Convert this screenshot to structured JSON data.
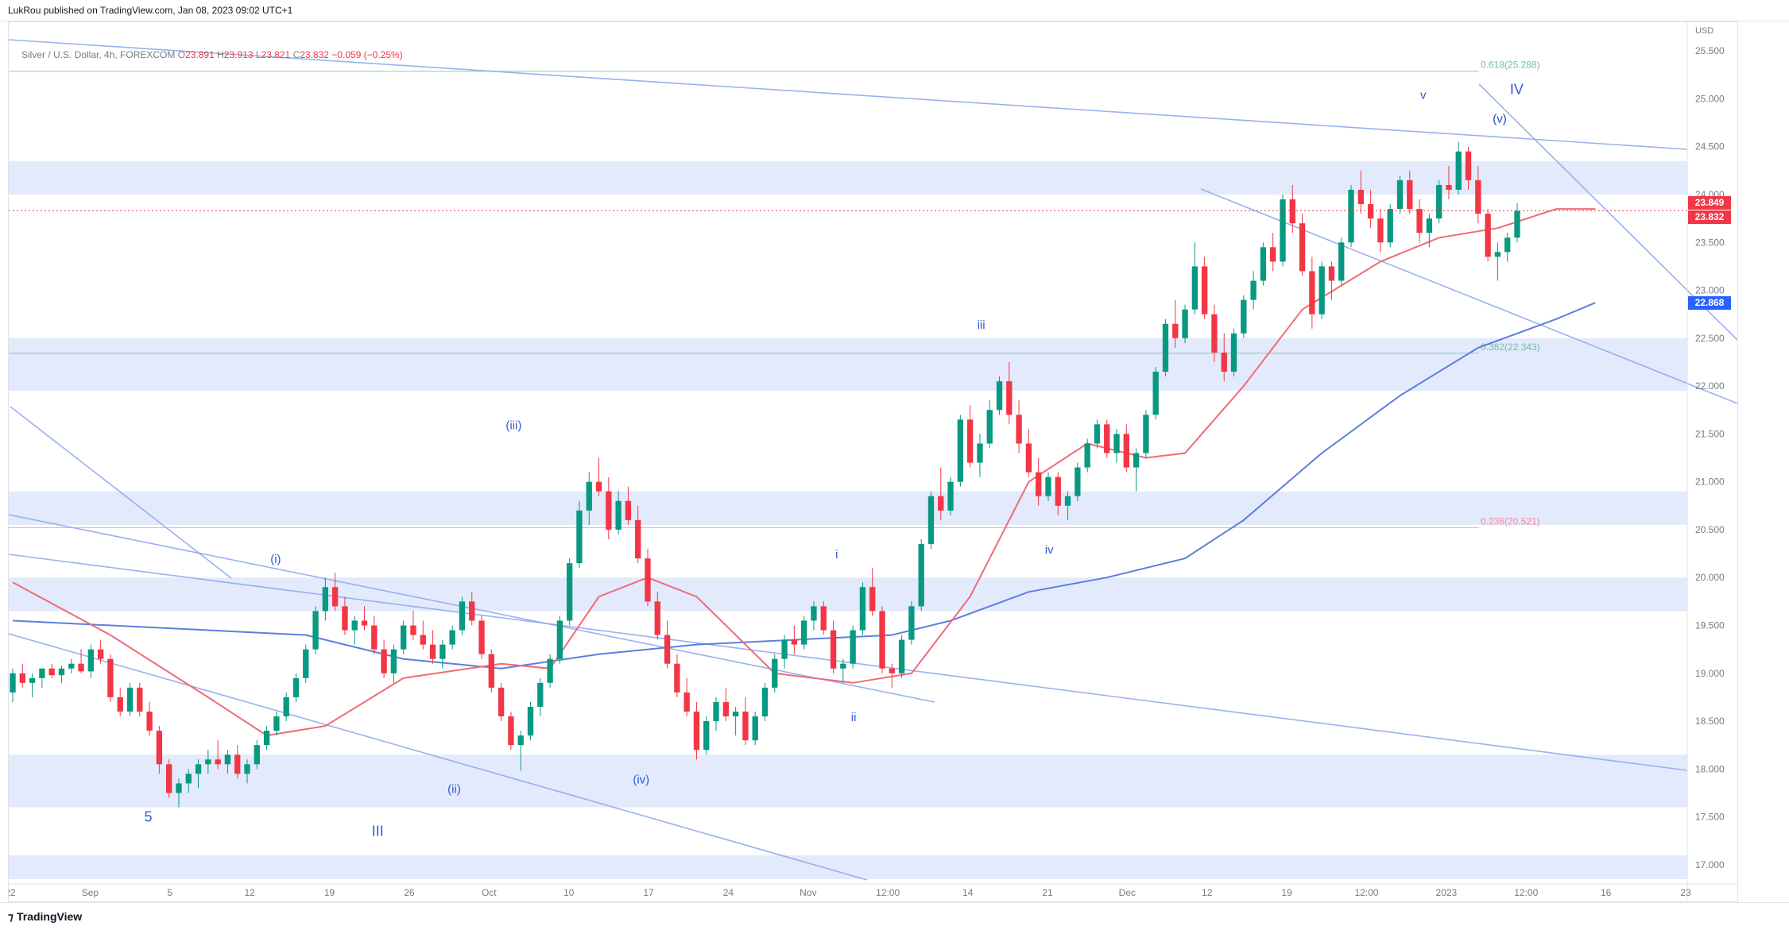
{
  "publisher": "LukRou published on TradingView.com, Jan 08, 2023 09:02 UTC+1",
  "legend": {
    "symbol": "Silver / U.S. Dollar, 4h, FOREXCOM",
    "o_label": "O",
    "o": "23.891",
    "h_label": "H",
    "h": "23.913",
    "l_label": "L",
    "l": "23.821",
    "c_label": "C",
    "c": "23.832",
    "change": "−0.059 (−0.25%)"
  },
  "footer": {
    "logo": "TradingView"
  },
  "colors": {
    "bull": "#089981",
    "bear": "#f23645",
    "ma_fast": "#f06a76",
    "ma_slow": "#5b7fde",
    "zone": "#dde6fb",
    "trendline": "#90a9ee",
    "wave_label": "#2f5bd0",
    "fib_green": "#6fc0a3",
    "fib_red": "#f28b9a"
  },
  "price_tags": [
    {
      "value": "23.849",
      "color": "#f23645"
    },
    {
      "value": "23.832",
      "color": "#f23645"
    },
    {
      "value": "22.868",
      "color": "#2962ff"
    }
  ],
  "chart_data": {
    "type": "candlestick",
    "currency": "USD",
    "ylim": [
      16.8,
      25.8
    ],
    "y_ticks": [
      "25.500",
      "25.000",
      "24.500",
      "24.000",
      "23.500",
      "23.000",
      "22.500",
      "22.000",
      "21.500",
      "21.000",
      "20.500",
      "20.000",
      "19.500",
      "19.000",
      "18.500",
      "18.000",
      "17.500",
      "17.000"
    ],
    "x_ticks": [
      "22",
      "Sep",
      "5",
      "12",
      "19",
      "26",
      "Oct",
      "10",
      "17",
      "24",
      "Nov",
      "12:00",
      "14",
      "21",
      "Dec",
      "12",
      "19",
      "12:00",
      "2023",
      "12:00",
      "16",
      "23"
    ],
    "fib_levels": [
      {
        "label": "0.618(25.288)",
        "value": 25.288
      },
      {
        "label": "0.382(22.343)",
        "value": 22.343
      },
      {
        "label": "0.236(20.521)",
        "value": 20.521
      }
    ],
    "zones": [
      [
        24.0,
        24.35
      ],
      [
        21.95,
        22.5
      ],
      [
        20.55,
        20.9
      ],
      [
        19.65,
        20.0
      ],
      [
        17.6,
        18.15
      ],
      [
        16.85,
        17.1
      ]
    ],
    "wave_labels": [
      "5",
      "(i)",
      "(v)",
      "III",
      "(ii)",
      "(iii)",
      "(iv)",
      "i",
      "ii",
      "iii",
      "iv",
      "v",
      "(v)",
      "IV"
    ],
    "candles": [
      [
        18.8,
        19.05,
        18.7,
        19.0
      ],
      [
        19.0,
        19.1,
        18.85,
        18.9
      ],
      [
        18.9,
        19.0,
        18.75,
        18.95
      ],
      [
        18.95,
        19.05,
        18.85,
        19.05
      ],
      [
        19.05,
        19.1,
        18.95,
        18.98
      ],
      [
        18.98,
        19.08,
        18.9,
        19.05
      ],
      [
        19.05,
        19.15,
        19.0,
        19.1
      ],
      [
        19.1,
        19.25,
        19.0,
        19.02
      ],
      [
        19.02,
        19.3,
        18.95,
        19.25
      ],
      [
        19.25,
        19.35,
        19.1,
        19.15
      ],
      [
        19.15,
        19.2,
        18.7,
        18.75
      ],
      [
        18.75,
        18.85,
        18.55,
        18.6
      ],
      [
        18.6,
        18.9,
        18.55,
        18.85
      ],
      [
        18.85,
        18.9,
        18.55,
        18.6
      ],
      [
        18.6,
        18.7,
        18.35,
        18.4
      ],
      [
        18.4,
        18.45,
        17.95,
        18.05
      ],
      [
        18.05,
        18.1,
        17.7,
        17.75
      ],
      [
        17.75,
        17.9,
        17.6,
        17.85
      ],
      [
        17.85,
        18.0,
        17.75,
        17.95
      ],
      [
        17.95,
        18.1,
        17.8,
        18.05
      ],
      [
        18.05,
        18.2,
        17.95,
        18.1
      ],
      [
        18.1,
        18.3,
        18.0,
        18.05
      ],
      [
        18.05,
        18.2,
        17.95,
        18.15
      ],
      [
        18.15,
        18.25,
        17.9,
        17.95
      ],
      [
        17.95,
        18.1,
        17.85,
        18.05
      ],
      [
        18.05,
        18.3,
        18.0,
        18.25
      ],
      [
        18.25,
        18.45,
        18.2,
        18.4
      ],
      [
        18.4,
        18.6,
        18.35,
        18.55
      ],
      [
        18.55,
        18.8,
        18.5,
        18.75
      ],
      [
        18.75,
        19.0,
        18.7,
        18.95
      ],
      [
        18.95,
        19.3,
        18.9,
        19.25
      ],
      [
        19.25,
        19.7,
        19.2,
        19.65
      ],
      [
        19.65,
        20.0,
        19.55,
        19.9
      ],
      [
        19.9,
        20.05,
        19.65,
        19.7
      ],
      [
        19.7,
        19.8,
        19.4,
        19.45
      ],
      [
        19.45,
        19.6,
        19.3,
        19.55
      ],
      [
        19.55,
        19.7,
        19.45,
        19.5
      ],
      [
        19.5,
        19.6,
        19.2,
        19.25
      ],
      [
        19.25,
        19.35,
        18.95,
        19.0
      ],
      [
        19.0,
        19.3,
        18.9,
        19.25
      ],
      [
        19.25,
        19.55,
        19.2,
        19.5
      ],
      [
        19.5,
        19.65,
        19.35,
        19.4
      ],
      [
        19.4,
        19.55,
        19.25,
        19.3
      ],
      [
        19.3,
        19.45,
        19.1,
        19.15
      ],
      [
        19.15,
        19.35,
        19.05,
        19.3
      ],
      [
        19.3,
        19.5,
        19.25,
        19.45
      ],
      [
        19.45,
        19.8,
        19.4,
        19.75
      ],
      [
        19.75,
        19.85,
        19.5,
        19.55
      ],
      [
        19.55,
        19.6,
        19.15,
        19.2
      ],
      [
        19.2,
        19.25,
        18.8,
        18.85
      ],
      [
        18.85,
        18.9,
        18.5,
        18.55
      ],
      [
        18.55,
        18.6,
        18.2,
        18.25
      ],
      [
        18.25,
        18.4,
        17.98,
        18.35
      ],
      [
        18.35,
        18.7,
        18.3,
        18.65
      ],
      [
        18.65,
        18.95,
        18.55,
        18.9
      ],
      [
        18.9,
        19.2,
        18.85,
        19.15
      ],
      [
        19.15,
        19.6,
        19.1,
        19.55
      ],
      [
        19.55,
        20.2,
        19.5,
        20.15
      ],
      [
        20.15,
        20.8,
        20.1,
        20.7
      ],
      [
        20.7,
        21.1,
        20.55,
        21.0
      ],
      [
        21.0,
        21.25,
        20.85,
        20.9
      ],
      [
        20.9,
        21.05,
        20.4,
        20.5
      ],
      [
        20.5,
        20.9,
        20.45,
        20.8
      ],
      [
        20.8,
        20.95,
        20.55,
        20.6
      ],
      [
        20.6,
        20.75,
        20.15,
        20.2
      ],
      [
        20.2,
        20.3,
        19.7,
        19.75
      ],
      [
        19.75,
        19.85,
        19.35,
        19.4
      ],
      [
        19.4,
        19.55,
        19.05,
        19.1
      ],
      [
        19.1,
        19.2,
        18.75,
        18.8
      ],
      [
        18.8,
        18.95,
        18.55,
        18.6
      ],
      [
        18.6,
        18.7,
        18.1,
        18.2
      ],
      [
        18.2,
        18.55,
        18.15,
        18.5
      ],
      [
        18.5,
        18.75,
        18.4,
        18.7
      ],
      [
        18.7,
        18.85,
        18.5,
        18.55
      ],
      [
        18.55,
        18.65,
        18.35,
        18.6
      ],
      [
        18.6,
        18.75,
        18.25,
        18.3
      ],
      [
        18.3,
        18.6,
        18.25,
        18.55
      ],
      [
        18.55,
        18.9,
        18.5,
        18.85
      ],
      [
        18.85,
        19.2,
        18.8,
        19.15
      ],
      [
        19.15,
        19.4,
        19.05,
        19.35
      ],
      [
        19.35,
        19.5,
        19.2,
        19.3
      ],
      [
        19.3,
        19.6,
        19.25,
        19.55
      ],
      [
        19.55,
        19.75,
        19.45,
        19.7
      ],
      [
        19.7,
        19.75,
        19.4,
        19.45
      ],
      [
        19.45,
        19.55,
        19.0,
        19.05
      ],
      [
        19.05,
        19.15,
        18.9,
        19.1
      ],
      [
        19.1,
        19.5,
        19.05,
        19.45
      ],
      [
        19.45,
        19.95,
        19.4,
        19.9
      ],
      [
        19.9,
        20.1,
        19.6,
        19.65
      ],
      [
        19.65,
        19.7,
        19.0,
        19.05
      ],
      [
        19.05,
        19.1,
        18.85,
        19.0
      ],
      [
        19.0,
        19.4,
        18.95,
        19.35
      ],
      [
        19.35,
        19.75,
        19.3,
        19.7
      ],
      [
        19.7,
        20.4,
        19.65,
        20.35
      ],
      [
        20.35,
        20.9,
        20.3,
        20.85
      ],
      [
        20.85,
        21.15,
        20.6,
        20.7
      ],
      [
        20.7,
        21.05,
        20.65,
        21.0
      ],
      [
        21.0,
        21.7,
        20.95,
        21.65
      ],
      [
        21.65,
        21.8,
        21.15,
        21.2
      ],
      [
        21.2,
        21.5,
        21.05,
        21.4
      ],
      [
        21.4,
        21.85,
        21.35,
        21.75
      ],
      [
        21.75,
        22.1,
        21.7,
        22.05
      ],
      [
        22.05,
        22.25,
        21.6,
        21.7
      ],
      [
        21.7,
        21.85,
        21.3,
        21.4
      ],
      [
        21.4,
        21.55,
        21.05,
        21.1
      ],
      [
        21.1,
        21.25,
        20.75,
        20.85
      ],
      [
        20.85,
        21.1,
        20.8,
        21.05
      ],
      [
        21.05,
        21.1,
        20.65,
        20.75
      ],
      [
        20.75,
        20.9,
        20.6,
        20.85
      ],
      [
        20.85,
        21.2,
        20.8,
        21.15
      ],
      [
        21.15,
        21.45,
        21.1,
        21.4
      ],
      [
        21.4,
        21.65,
        21.35,
        21.6
      ],
      [
        21.6,
        21.65,
        21.25,
        21.3
      ],
      [
        21.3,
        21.55,
        21.2,
        21.5
      ],
      [
        21.5,
        21.6,
        21.1,
        21.15
      ],
      [
        21.15,
        21.35,
        20.9,
        21.3
      ],
      [
        21.3,
        21.75,
        21.25,
        21.7
      ],
      [
        21.7,
        22.2,
        21.65,
        22.15
      ],
      [
        22.15,
        22.7,
        22.1,
        22.65
      ],
      [
        22.65,
        22.9,
        22.4,
        22.5
      ],
      [
        22.5,
        22.85,
        22.45,
        22.8
      ],
      [
        22.8,
        23.5,
        22.75,
        23.25
      ],
      [
        23.25,
        23.35,
        22.7,
        22.75
      ],
      [
        22.75,
        22.85,
        22.25,
        22.35
      ],
      [
        22.35,
        22.55,
        22.05,
        22.15
      ],
      [
        22.15,
        22.6,
        22.1,
        22.55
      ],
      [
        22.55,
        22.95,
        22.5,
        22.9
      ],
      [
        22.9,
        23.2,
        22.8,
        23.1
      ],
      [
        23.1,
        23.5,
        23.05,
        23.45
      ],
      [
        23.45,
        23.6,
        23.2,
        23.3
      ],
      [
        23.3,
        24.0,
        23.25,
        23.95
      ],
      [
        23.95,
        24.1,
        23.6,
        23.7
      ],
      [
        23.7,
        23.8,
        23.15,
        23.2
      ],
      [
        23.2,
        23.35,
        22.6,
        22.75
      ],
      [
        22.75,
        23.3,
        22.7,
        23.25
      ],
      [
        23.25,
        23.3,
        22.9,
        23.1
      ],
      [
        23.1,
        23.55,
        23.05,
        23.5
      ],
      [
        23.5,
        24.1,
        23.45,
        24.05
      ],
      [
        24.05,
        24.25,
        23.8,
        23.9
      ],
      [
        23.9,
        24.05,
        23.65,
        23.75
      ],
      [
        23.75,
        23.85,
        23.4,
        23.5
      ],
      [
        23.5,
        23.9,
        23.45,
        23.85
      ],
      [
        23.85,
        24.2,
        23.8,
        24.15
      ],
      [
        24.15,
        24.25,
        23.8,
        23.85
      ],
      [
        23.85,
        23.95,
        23.5,
        23.6
      ],
      [
        23.6,
        23.8,
        23.45,
        23.75
      ],
      [
        23.75,
        24.15,
        23.7,
        24.1
      ],
      [
        24.1,
        24.3,
        23.95,
        24.05
      ],
      [
        24.05,
        24.55,
        24.0,
        24.45
      ],
      [
        24.45,
        24.5,
        24.05,
        24.15
      ],
      [
        24.15,
        24.3,
        23.7,
        23.8
      ],
      [
        23.8,
        23.85,
        23.3,
        23.35
      ],
      [
        23.35,
        23.5,
        23.1,
        23.4
      ],
      [
        23.4,
        23.6,
        23.3,
        23.55
      ],
      [
        23.55,
        23.91,
        23.5,
        23.83
      ]
    ],
    "overlay_points": {
      "ma_fast": [
        [
          0,
          19.95
        ],
        [
          10,
          19.4
        ],
        [
          20,
          18.75
        ],
        [
          26,
          18.35
        ],
        [
          32,
          18.45
        ],
        [
          40,
          18.95
        ],
        [
          50,
          19.1
        ],
        [
          55,
          19.05
        ],
        [
          60,
          19.8
        ],
        [
          65,
          20.0
        ],
        [
          70,
          19.8
        ],
        [
          78,
          19.0
        ],
        [
          86,
          18.9
        ],
        [
          92,
          19.0
        ],
        [
          98,
          19.8
        ],
        [
          104,
          21.0
        ],
        [
          110,
          21.4
        ],
        [
          116,
          21.25
        ],
        [
          120,
          21.3
        ],
        [
          126,
          22.0
        ],
        [
          132,
          22.8
        ],
        [
          140,
          23.3
        ],
        [
          146,
          23.55
        ],
        [
          152,
          23.65
        ],
        [
          158,
          23.85
        ],
        [
          162,
          23.85
        ]
      ],
      "ma_slow": [
        [
          0,
          19.55
        ],
        [
          20,
          19.45
        ],
        [
          30,
          19.4
        ],
        [
          40,
          19.15
        ],
        [
          50,
          19.05
        ],
        [
          60,
          19.2
        ],
        [
          70,
          19.3
        ],
        [
          80,
          19.35
        ],
        [
          90,
          19.4
        ],
        [
          96,
          19.55
        ],
        [
          104,
          19.85
        ],
        [
          112,
          20.0
        ],
        [
          120,
          20.2
        ],
        [
          126,
          20.6
        ],
        [
          134,
          21.3
        ],
        [
          142,
          21.9
        ],
        [
          150,
          22.4
        ],
        [
          158,
          22.7
        ],
        [
          162,
          22.87
        ]
      ]
    }
  }
}
